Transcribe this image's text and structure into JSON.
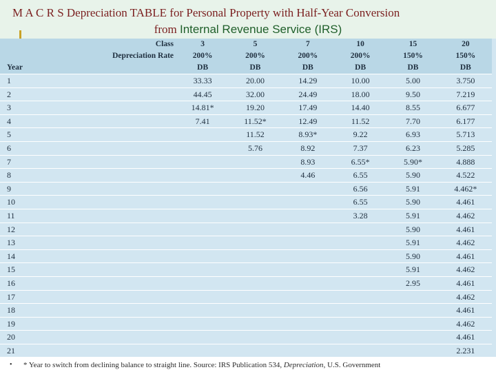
{
  "title": {
    "line1": "M A C R S   Depreciation  TABLE for Personal Property with Half-Year Conversion",
    "line2_from": "from ",
    "line2_source": "Internal Revenue Service (IRS)"
  },
  "table": {
    "header_class_label": "Class",
    "header_rate_label": "Depreciation Rate",
    "header_year_label": "Year",
    "columns": [
      {
        "class": "3",
        "rate": "200%",
        "method": "DB"
      },
      {
        "class": "5",
        "rate": "200%",
        "method": "DB"
      },
      {
        "class": "7",
        "rate": "200%",
        "method": "DB"
      },
      {
        "class": "10",
        "rate": "200%",
        "method": "DB"
      },
      {
        "class": "15",
        "rate": "150%",
        "method": "DB"
      },
      {
        "class": "20",
        "rate": "150%",
        "method": "DB"
      }
    ],
    "rows": [
      {
        "year": "1",
        "values": [
          "33.33",
          "20.00",
          "14.29",
          "10.00",
          "5.00",
          "3.750"
        ]
      },
      {
        "year": "2",
        "values": [
          "44.45",
          "32.00",
          "24.49",
          "18.00",
          "9.50",
          "7.219"
        ]
      },
      {
        "year": "3",
        "values": [
          "14.81*",
          "19.20",
          "17.49",
          "14.40",
          "8.55",
          "6.677"
        ]
      },
      {
        "year": "4",
        "values": [
          "7.41",
          "11.52*",
          "12.49",
          "11.52",
          "7.70",
          "6.177"
        ]
      },
      {
        "year": "5",
        "values": [
          "",
          "11.52",
          "8.93*",
          "9.22",
          "6.93",
          "5.713"
        ]
      },
      {
        "year": "6",
        "values": [
          "",
          "5.76",
          "8.92",
          "7.37",
          "6.23",
          "5.285"
        ]
      },
      {
        "year": "7",
        "values": [
          "",
          "",
          "8.93",
          "6.55*",
          "5.90*",
          "4.888"
        ]
      },
      {
        "year": "8",
        "values": [
          "",
          "",
          "4.46",
          "6.55",
          "5.90",
          "4.522"
        ]
      },
      {
        "year": "9",
        "values": [
          "",
          "",
          "",
          "6.56",
          "5.91",
          "4.462*"
        ]
      },
      {
        "year": "10",
        "values": [
          "",
          "",
          "",
          "6.55",
          "5.90",
          "4.461"
        ]
      },
      {
        "year": "11",
        "values": [
          "",
          "",
          "",
          "3.28",
          "5.91",
          "4.462"
        ]
      },
      {
        "year": "12",
        "values": [
          "",
          "",
          "",
          "",
          "5.90",
          "4.461"
        ]
      },
      {
        "year": "13",
        "values": [
          "",
          "",
          "",
          "",
          "5.91",
          "4.462"
        ]
      },
      {
        "year": "14",
        "values": [
          "",
          "",
          "",
          "",
          "5.90",
          "4.461"
        ]
      },
      {
        "year": "15",
        "values": [
          "",
          "",
          "",
          "",
          "5.91",
          "4.462"
        ]
      },
      {
        "year": "16",
        "values": [
          "",
          "",
          "",
          "",
          "2.95",
          "4.461"
        ]
      },
      {
        "year": "17",
        "values": [
          "",
          "",
          "",
          "",
          "",
          "4.462"
        ]
      },
      {
        "year": "18",
        "values": [
          "",
          "",
          "",
          "",
          "",
          "4.461"
        ]
      },
      {
        "year": "19",
        "values": [
          "",
          "",
          "",
          "",
          "",
          "4.462"
        ]
      },
      {
        "year": "20",
        "values": [
          "",
          "",
          "",
          "",
          "",
          "4.461"
        ]
      },
      {
        "year": "21",
        "values": [
          "",
          "",
          "",
          "",
          "",
          "2.231"
        ]
      }
    ]
  },
  "footnote": {
    "bullet": "•",
    "text_before": "*  Year to switch from declining balance to straight line. Source: IRS Publication 534, ",
    "text_italic": "Depreciation",
    "text_after": ", U.S. Government"
  }
}
